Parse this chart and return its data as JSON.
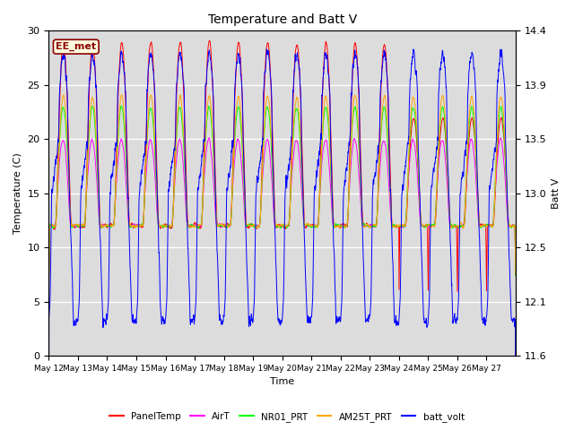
{
  "title": "Temperature and Batt V",
  "xlabel": "Time",
  "ylabel_left": "Temperature (C)",
  "ylabel_right": "Batt V",
  "ylim_left": [
    0,
    30
  ],
  "ylim_right": [
    11.6,
    14.4
  ],
  "annotation_text": "EE_met",
  "bg_color": "#dcdcdc",
  "fig_color": "#ffffff",
  "colors": [
    "red",
    "magenta",
    "lime",
    "orange",
    "blue"
  ],
  "legend_labels": [
    "PanelTemp",
    "AirT",
    "NR01_PRT",
    "AM25T_PRT",
    "batt_volt"
  ],
  "x_tick_labels": [
    "May 12",
    "May 13",
    "May 14",
    "May 15",
    "May 16",
    "May 17",
    "May 18",
    "May 19",
    "May 20",
    "May 21",
    "May 22",
    "May 23",
    "May 24",
    "May 25",
    "May 26",
    "May 27"
  ]
}
